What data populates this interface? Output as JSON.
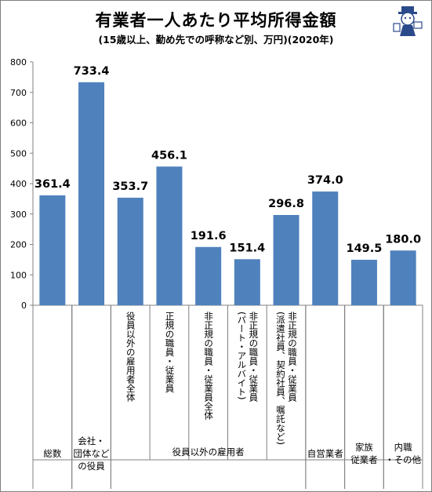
{
  "title": "有業者一人あたり平均所得金額",
  "subtitle": "(15歳以上、勤め先での呼称など別、万円)(2020年)",
  "mascot_icon": "reporter-mascot-icon",
  "chart_data": {
    "type": "bar",
    "bar_color": "#4f81bd",
    "ylim": [
      0,
      800
    ],
    "yticks": [
      0,
      100,
      200,
      300,
      400,
      500,
      600,
      700,
      800
    ],
    "grid": false,
    "values": [
      361.4,
      733.4,
      353.7,
      456.1,
      191.6,
      151.4,
      296.8,
      374.0,
      149.5,
      180.0
    ],
    "value_labels": [
      "361.4",
      "733.4",
      "353.7",
      "456.1",
      "191.6",
      "151.4",
      "296.8",
      "374.0",
      "149.5",
      "180.0"
    ],
    "sub_labels": [
      "",
      "",
      "役員以外の雇用者全体",
      "正規の職員・従業員",
      "非正規の職員・従業員全体",
      "非正規の職員・従業員\n(パート・アルバイト)",
      "非正規の職員・従業員\n(派遣社員、契約社員、嘱託など)",
      "",
      "",
      ""
    ],
    "groups": [
      {
        "label": "総数",
        "start": 0,
        "end": 0
      },
      {
        "label": "会社・\n団体など\nの役員",
        "start": 1,
        "end": 1
      },
      {
        "label": "役員以外の雇用者",
        "start": 2,
        "end": 6
      },
      {
        "label": "自営業者",
        "start": 7,
        "end": 7
      },
      {
        "label": "家族\n従業者",
        "start": 8,
        "end": 8
      },
      {
        "label": "内職\n・その他",
        "start": 9,
        "end": 9
      }
    ]
  }
}
